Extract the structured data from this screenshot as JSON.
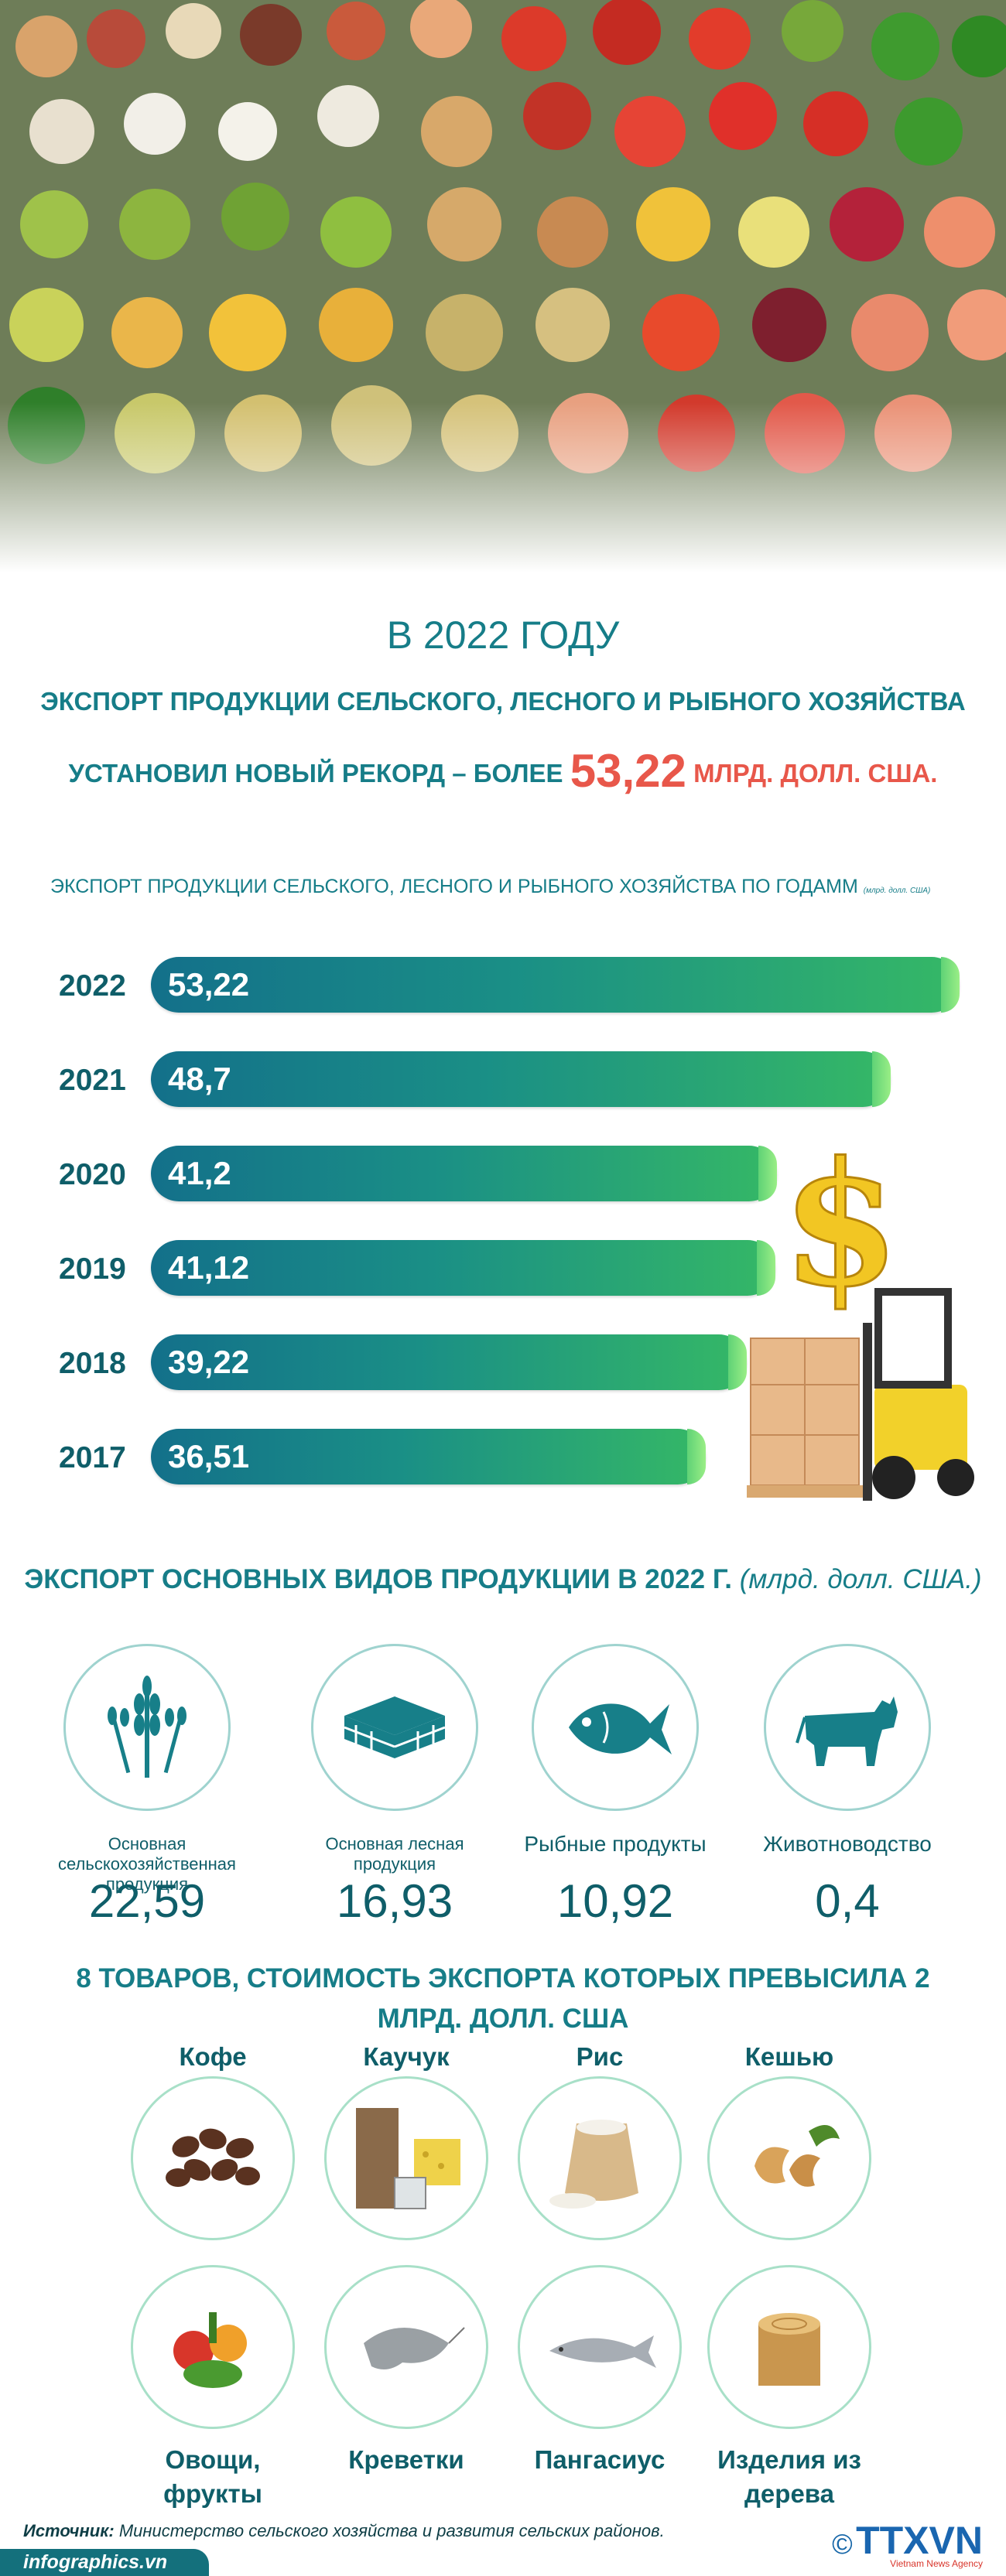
{
  "headline": {
    "year_line": "В 2022 ГОДУ",
    "subtitle": "ЭКСПОРТ ПРОДУКЦИИ СЕЛЬСКОГО, ЛЕСНОГО И РЫБНОГО ХОЗЯЙСТВА",
    "record_prefix": "УСТАНОВИЛ НОВЫЙ РЕКОРД – БОЛЕЕ",
    "record_value": "53,22",
    "record_unit": "МЛРД. ДОЛЛ. США."
  },
  "chart_data": {
    "type": "bar",
    "title": "ЭКСПОРТ ПРОДУКЦИИ СЕЛЬСКОГО, ЛЕСНОГО И РЫБНОГО ХОЗЯЙСТВА ПО ГОДАММ",
    "unit_note": "(млрд. долл. США)",
    "categories": [
      "2022",
      "2021",
      "2020",
      "2019",
      "2018",
      "2017"
    ],
    "values": [
      53.22,
      48.7,
      41.2,
      41.12,
      39.22,
      36.51
    ],
    "value_labels": [
      "53,22",
      "48,7",
      "41,2",
      "41,12",
      "39,22",
      "36,51"
    ],
    "orientation": "horizontal",
    "colors": {
      "bar_start": "#13708a",
      "bar_end": "#35b866"
    }
  },
  "categories_section": {
    "title": "ЭКСПОРТ ОСНОВНЫХ ВИДОВ ПРОДУКЦИИ В 2022 Г.",
    "unit": "(млрд. долл. США.)",
    "items": [
      {
        "label": "Основная сельскохозяйственная продукция",
        "value": "22,59",
        "icon": "wheat-icon"
      },
      {
        "label": "Основная лесная продукция",
        "value": "16,93",
        "icon": "pallet-icon"
      },
      {
        "label": "Рыбные продукты",
        "value": "10,92",
        "icon": "fish-icon"
      },
      {
        "label": "Животноводство",
        "value": "0,4",
        "icon": "cow-icon"
      }
    ]
  },
  "goods_section": {
    "title": "8 ТОВАРОВ, СТОИМОСТЬ ЭКСПОРТА КОТОРЫХ ПРЕВЫСИЛА 2 МЛРД. ДОЛЛ. США",
    "top": [
      "Кофе",
      "Каучук",
      "Рис",
      "Кешью"
    ],
    "bottom": [
      "Овощи, фрукты",
      "Креветки",
      "Пангасиус",
      "Изделия из дерева"
    ]
  },
  "footer": {
    "source_label": "Источник:",
    "source_text": "Министерство сельского хозяйства и развития сельских районов.",
    "site": "infographics.vn",
    "brand": "TTXVN",
    "brand_sub": "Vietnam News Agency"
  }
}
